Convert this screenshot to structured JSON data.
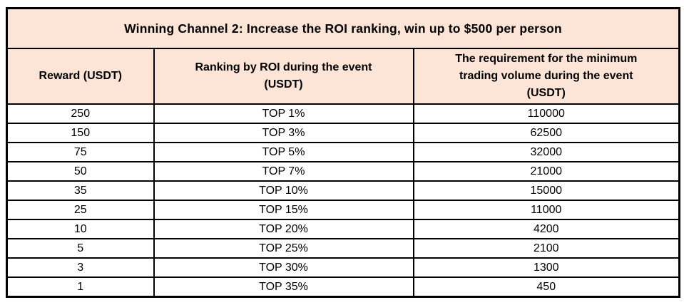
{
  "title": "Winning Channel 2: Increase the ROI ranking, win up to $500 per person",
  "table": {
    "headers": [
      "Reward (USDT)",
      "Ranking by ROI during the event (USDT)",
      "The requirement for the minimum trading volume during the event (USDT)"
    ],
    "rows": [
      {
        "reward": "250",
        "rank": "TOP 1%",
        "volume": "110000"
      },
      {
        "reward": "150",
        "rank": "TOP 3%",
        "volume": "62500"
      },
      {
        "reward": "75",
        "rank": "TOP 5%",
        "volume": "32000"
      },
      {
        "reward": "50",
        "rank": "TOP 7%",
        "volume": "21000"
      },
      {
        "reward": "35",
        "rank": "TOP 10%",
        "volume": "15000"
      },
      {
        "reward": "25",
        "rank": "TOP 15%",
        "volume": "11000"
      },
      {
        "reward": "10",
        "rank": "TOP 20%",
        "volume": "4200"
      },
      {
        "reward": "5",
        "rank": "TOP 25%",
        "volume": "2100"
      },
      {
        "reward": "3",
        "rank": "TOP 30%",
        "volume": "1300"
      },
      {
        "reward": "1",
        "rank": "TOP 35%",
        "volume": "450"
      }
    ]
  },
  "colors": {
    "header_background": "#fce4d6",
    "border": "#000000",
    "text": "#000000",
    "page_background": "#ffffff"
  },
  "chart_data": {
    "type": "table",
    "title": "Winning Channel 2: Increase the ROI ranking, win up to $500 per person",
    "columns": [
      "Reward (USDT)",
      "Ranking by ROI during the event (USDT)",
      "The requirement for the minimum trading volume during the event (USDT)"
    ],
    "rewards": [
      250,
      150,
      75,
      50,
      35,
      25,
      10,
      5,
      3,
      1
    ],
    "rank_tiers": [
      "TOP 1%",
      "TOP 3%",
      "TOP 5%",
      "TOP 7%",
      "TOP 10%",
      "TOP 15%",
      "TOP 20%",
      "TOP 25%",
      "TOP 30%",
      "TOP 35%"
    ],
    "min_volumes": [
      110000,
      62500,
      32000,
      21000,
      15000,
      11000,
      4200,
      2100,
      1300,
      450
    ]
  }
}
